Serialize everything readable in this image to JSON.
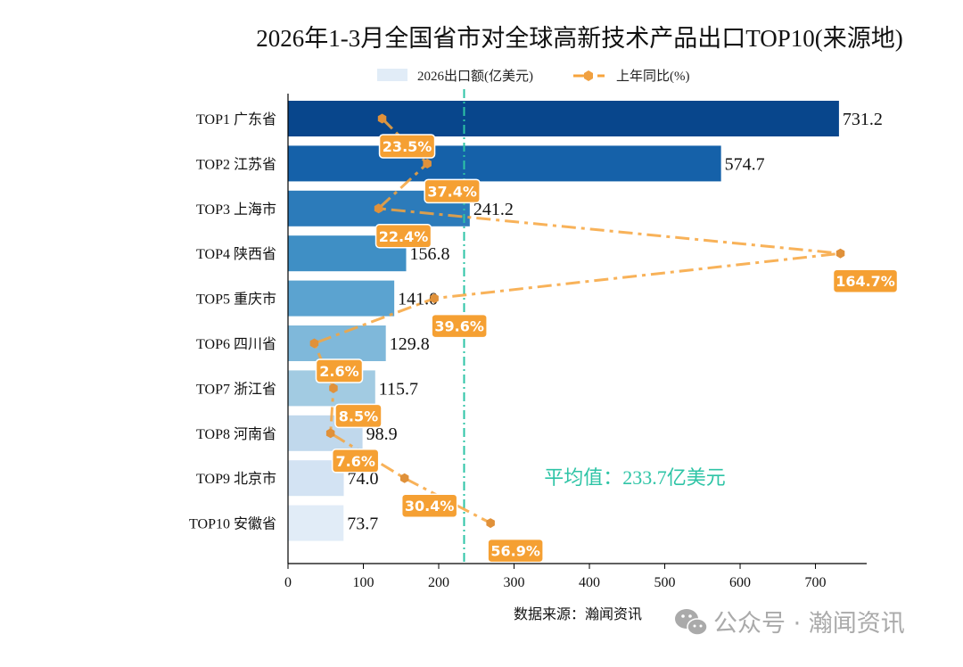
{
  "chart_data": {
    "type": "bar",
    "orientation": "horizontal",
    "title": "2026年1-3月全国省市对全球高新技术产品出口TOP10(来源地)",
    "categories": [
      "TOP1 广东省",
      "TOP2 江苏省",
      "TOP3 上海市",
      "TOP4 陕西省",
      "TOP5 重庆市",
      "TOP6 四川省",
      "TOP7 浙江省",
      "TOP8 河南省",
      "TOP9 北京市",
      "TOP10 安徽省"
    ],
    "series": [
      {
        "name": "2026出口额(亿美元)",
        "type": "bar",
        "values": [
          731.2,
          574.7,
          241.2,
          156.8,
          141.0,
          129.8,
          115.7,
          98.9,
          74.0,
          73.7
        ],
        "value_labels": [
          "731.2",
          "574.7",
          "241.2",
          "156.8",
          "141.0",
          "129.8",
          "115.7",
          "98.9",
          "74.0",
          "73.7"
        ]
      },
      {
        "name": "上年同比(%)",
        "type": "line",
        "values": [
          23.5,
          37.4,
          22.4,
          164.7,
          39.6,
          2.6,
          8.5,
          7.6,
          30.4,
          56.9
        ],
        "value_labels": [
          "23.5%",
          "37.4%",
          "22.4%",
          "164.7%",
          "39.6%",
          "2.6%",
          "8.5%",
          "7.6%",
          "30.4%",
          "56.9%"
        ]
      }
    ],
    "xlim": [
      0,
      768
    ],
    "secondary_xlim": [
      -5.5,
      172.8
    ],
    "xticks": [
      "0",
      "100",
      "200",
      "300",
      "400",
      "500",
      "600",
      "700"
    ],
    "xtick_values": [
      0,
      100,
      200,
      300,
      400,
      500,
      600,
      700
    ],
    "mean": {
      "value": 233.7,
      "label": "平均值：233.7亿美元"
    },
    "legend_position": "top-center",
    "grid": false,
    "bar_colors": [
      "#08468c",
      "#1561a9",
      "#2c7bba",
      "#3f8fc5",
      "#5ba3d0",
      "#7fb8da",
      "#a2cbe2",
      "#c0d8ec",
      "#d3e3f3",
      "#e1ecf7"
    ],
    "line_color": "#f7a43c",
    "marker_color": "#e0913a",
    "mean_color": "#2ec4a6"
  },
  "source": "数据来源：瀚闻资讯",
  "watermark": "公众号 · 瀚闻资讯"
}
